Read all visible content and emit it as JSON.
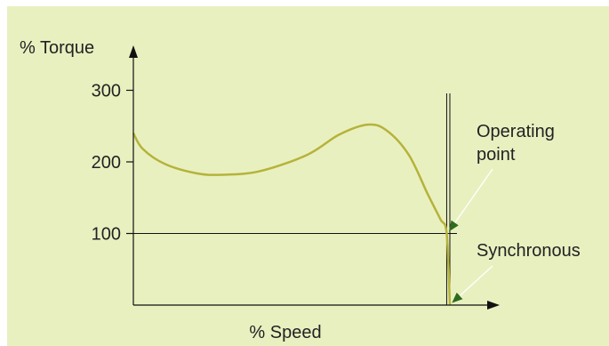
{
  "colors": {
    "background": "#e9f0c0",
    "curve": "#b5b33a",
    "axis": "#111111",
    "arrow": "#2e6b1e"
  },
  "chart_data": {
    "type": "line",
    "title": "",
    "xlabel": "% Speed",
    "ylabel": "% Torque",
    "y_ticks": [
      {
        "value": 100,
        "label": "100"
      },
      {
        "value": 200,
        "label": "200"
      },
      {
        "value": 300,
        "label": "300"
      }
    ],
    "x_ticks": [],
    "xlim": [
      0,
      100
    ],
    "ylim": [
      0,
      350
    ],
    "grid": false,
    "reference_lines": {
      "rated_torque": 100,
      "operating_speed": 99,
      "synchronous_speed": 100
    },
    "series": [
      {
        "points": [
          {
            "x": 0,
            "y": 240
          },
          {
            "x": 3,
            "y": 218
          },
          {
            "x": 10,
            "y": 197
          },
          {
            "x": 20,
            "y": 184
          },
          {
            "x": 28,
            "y": 182
          },
          {
            "x": 40,
            "y": 187
          },
          {
            "x": 55,
            "y": 210
          },
          {
            "x": 65,
            "y": 238
          },
          {
            "x": 74,
            "y": 252
          },
          {
            "x": 80,
            "y": 244
          },
          {
            "x": 87,
            "y": 210
          },
          {
            "x": 93,
            "y": 155
          },
          {
            "x": 97,
            "y": 120
          },
          {
            "x": 99,
            "y": 100
          },
          {
            "x": 100,
            "y": 0
          }
        ]
      }
    ],
    "annotations": [
      {
        "id": "operating-point",
        "text_lines": [
          "Operating",
          "point"
        ],
        "x": 99,
        "y": 100
      },
      {
        "id": "synchronous",
        "text_lines": [
          "Synchronous"
        ],
        "x": 100,
        "y": 0
      }
    ]
  }
}
